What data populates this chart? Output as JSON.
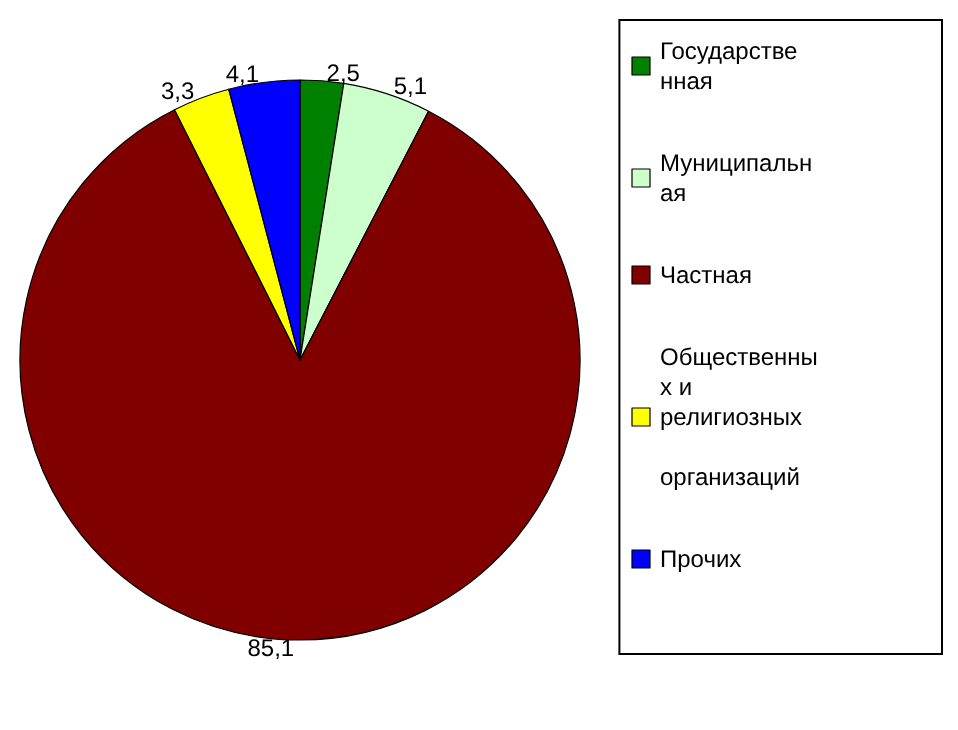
{
  "chart_data": {
    "type": "pie",
    "categories": [
      "Государственная",
      "Муниципальная",
      "Частная",
      "Общественных и религиозных организаций",
      "Прочих"
    ],
    "values": [
      2.5,
      5.1,
      85.1,
      3.3,
      4.1
    ],
    "value_labels": [
      "2,5",
      "5,1",
      "85,1",
      "3,3",
      "4,1"
    ],
    "colors": [
      "#008000",
      "#ccffcc",
      "#800000",
      "#ffff00",
      "#0000ff"
    ],
    "legend": "right"
  }
}
